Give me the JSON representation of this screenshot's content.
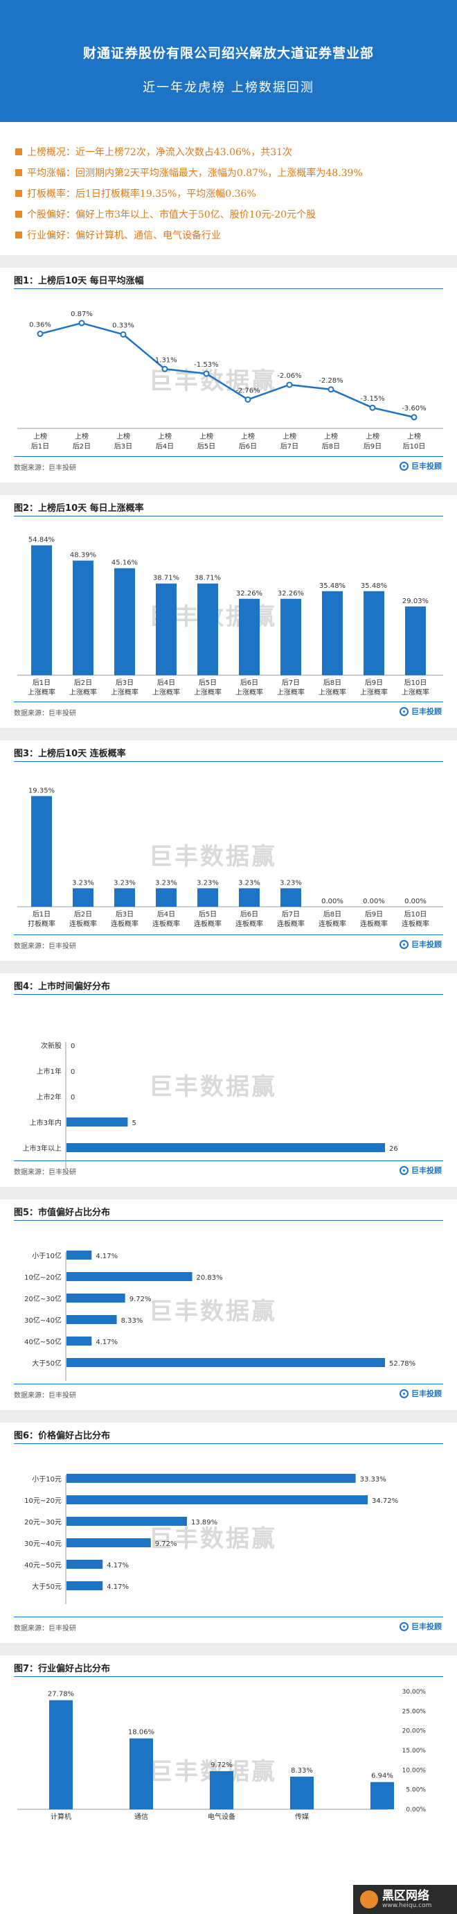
{
  "header": {
    "title": "财通证券股份有限公司绍兴解放大道证券营业部",
    "subtitle": "近一年龙虎榜  上榜数据回测"
  },
  "summary": [
    "上榜概况：近一年上榜72次，净流入次数占43.06%，共31次",
    "平均涨幅：回测期内第2天平均涨幅最大，涨幅为0.87%，上涨概率为48.39%",
    "打板概率：后1日打板概率19.35%，平均涨幅0.36%",
    "个股偏好：偏好上市3年以上、市值大于50亿、股价10元-20元个股",
    "行业偏好：偏好计算机、通信、电气设备行业"
  ],
  "source_text": "数据来源：巨丰投研",
  "logo_text": "巨丰投顾",
  "watermark": "巨丰数据赢",
  "corner": {
    "title": "黑区网络",
    "url": "www.heiqu.com"
  },
  "colors": {
    "accent": "#1d74c4",
    "orange": "#e07b17"
  },
  "chart_data": [
    {
      "type": "line",
      "title": "图1：上榜后10天  每日平均涨幅",
      "categories": [
        "上榜\n后1日",
        "上榜\n后2日",
        "上榜\n后3日",
        "上榜\n后4日",
        "上榜\n后5日",
        "上榜\n后6日",
        "上榜\n后7日",
        "上榜\n后8日",
        "上榜\n后9日",
        "上榜\n后10日"
      ],
      "values": [
        0.36,
        0.87,
        0.33,
        -1.31,
        -1.53,
        -2.76,
        -2.06,
        -2.28,
        -3.15,
        -3.6
      ],
      "labels": [
        "0.36%",
        "0.87%",
        "0.33%",
        "-1.31%",
        "-1.53%",
        "-2.76%",
        "-2.06%",
        "-2.28%",
        "-3.15%",
        "-3.60%"
      ]
    },
    {
      "type": "bar",
      "title": "图2：上榜后10天  每日上涨概率",
      "categories": [
        "后1日\n上涨概率",
        "后2日\n上涨概率",
        "后3日\n上涨概率",
        "后4日\n上涨概率",
        "后5日\n上涨概率",
        "后6日\n上涨概率",
        "后7日\n上涨概率",
        "后8日\n上涨概率",
        "后9日\n上涨概率",
        "后10日\n上涨概率"
      ],
      "values": [
        54.84,
        48.39,
        45.16,
        38.71,
        38.71,
        32.26,
        32.26,
        35.48,
        35.48,
        29.03
      ],
      "labels": [
        "54.84%",
        "48.39%",
        "45.16%",
        "38.71%",
        "38.71%",
        "32.26%",
        "32.26%",
        "35.48%",
        "35.48%",
        "29.03%"
      ]
    },
    {
      "type": "bar",
      "title": "图3：上榜后10天  连板概率",
      "categories": [
        "后1日\n打板概率",
        "后2日\n连板概率",
        "后3日\n连板概率",
        "后4日\n连板概率",
        "后5日\n连板概率",
        "后6日\n连板概率",
        "后7日\n连板概率",
        "后8日\n连板概率",
        "后9日\n连板概率",
        "后10日\n连板概率"
      ],
      "values": [
        19.35,
        3.23,
        3.23,
        3.23,
        3.23,
        3.23,
        3.23,
        0,
        0,
        0
      ],
      "labels": [
        "19.35%",
        "3.23%",
        "3.23%",
        "3.23%",
        "3.23%",
        "3.23%",
        "3.23%",
        "0.00%",
        "0.00%",
        "0.00%"
      ]
    },
    {
      "type": "bar",
      "orientation": "horizontal",
      "title": "图4：上市时间偏好分布",
      "categories": [
        "次新股",
        "上市1年",
        "上市2年",
        "上市3年内",
        "上市3年以上"
      ],
      "values": [
        0,
        0,
        0,
        5,
        26
      ],
      "labels": [
        "0",
        "0",
        "0",
        "5",
        "26"
      ]
    },
    {
      "type": "bar",
      "orientation": "horizontal",
      "title": "图5：市值偏好占比分布",
      "categories": [
        "小于10亿",
        "10亿~20亿",
        "20亿~30亿",
        "30亿~40亿",
        "40亿~50亿",
        "大于50亿"
      ],
      "values": [
        4.17,
        20.83,
        9.72,
        8.33,
        4.17,
        52.78
      ],
      "labels": [
        "4.17%",
        "20.83%",
        "9.72%",
        "8.33%",
        "4.17%",
        "52.78%"
      ]
    },
    {
      "type": "bar",
      "orientation": "horizontal",
      "title": "图6：价格偏好占比分布",
      "categories": [
        "小于10元",
        "10元~20元",
        "20元~30元",
        "30元~40元",
        "40元~50元",
        "大于50元"
      ],
      "values": [
        33.33,
        34.72,
        13.89,
        9.72,
        4.17,
        4.17
      ],
      "labels": [
        "33.33%",
        "34.72%",
        "13.89%",
        "9.72%",
        "4.17%",
        "4.17%"
      ]
    },
    {
      "type": "bar",
      "title": "图7：行业偏好占比分布",
      "categories": [
        "计算机",
        "通信",
        "电气设备",
        "传媒",
        ""
      ],
      "values": [
        27.78,
        18.06,
        9.72,
        8.33,
        6.94
      ],
      "labels": [
        "27.78%",
        "18.06%",
        "9.72%",
        "8.33%",
        "6.94%"
      ],
      "ylim": [
        0,
        30
      ],
      "yticks": [
        "0.00%",
        "5.00%",
        "10.00%",
        "15.00%",
        "20.00%",
        "25.00%",
        "30.00%"
      ]
    }
  ]
}
